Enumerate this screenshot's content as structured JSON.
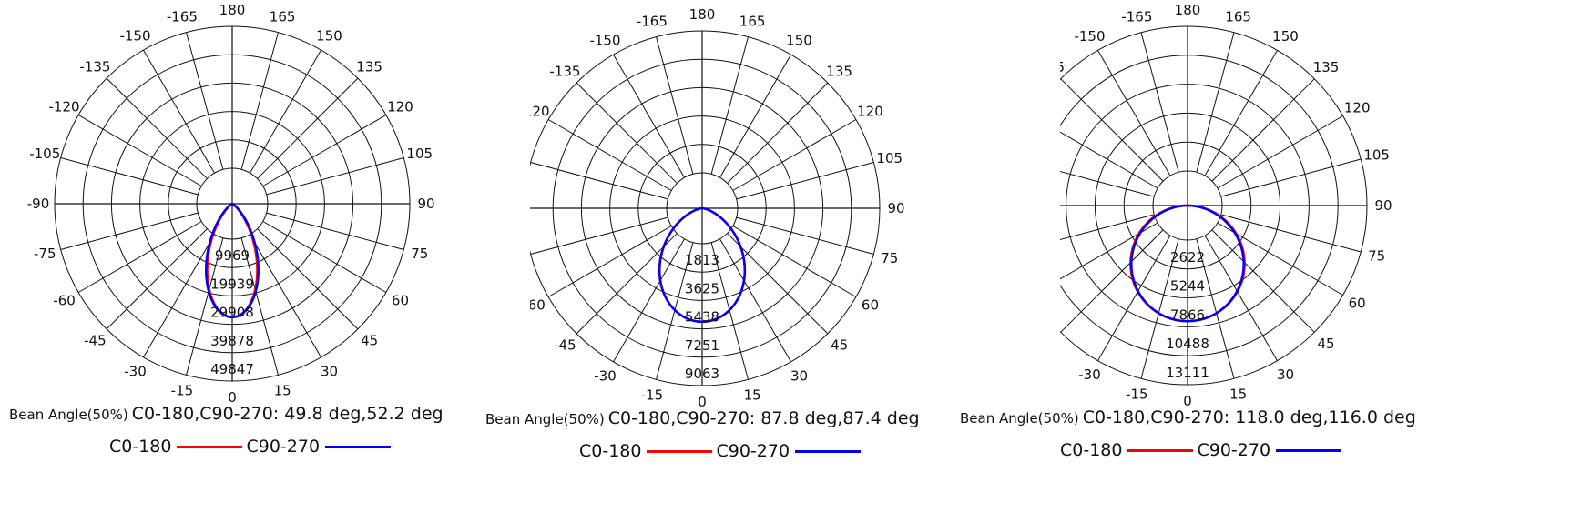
{
  "colors": {
    "C0-180": "#ff0000",
    "C90-270": "#0000ff",
    "grid": "#111111"
  },
  "chart_data": [
    {
      "type": "polar",
      "angle_ticks": [
        "180",
        "165",
        "150",
        "135",
        "120",
        "105",
        "90",
        "75",
        "60",
        "45",
        "30",
        "15",
        "0",
        "-15",
        "-30",
        "-45",
        "-60",
        "-75",
        "-90",
        "-105",
        "-120",
        "-135",
        "-150",
        "-165"
      ],
      "radial_ticks": [
        "9969",
        "19939",
        "29908",
        "39878",
        "49847"
      ],
      "radial_max": 49847,
      "beam_prefix": "Bean Angle(50%)",
      "beam_text": "C0-180,C90-270: 49.8 deg,52.2 deg",
      "series": [
        {
          "name": "C0-180",
          "beam_deg": 49.8,
          "peak": 39878
        },
        {
          "name": "C90-270",
          "beam_deg": 52.2,
          "peak": 39878
        }
      ]
    },
    {
      "type": "polar",
      "angle_ticks": [
        "180",
        "165",
        "150",
        "135",
        "120",
        "105",
        "90",
        "75",
        "60",
        "45",
        "30",
        "15",
        "0",
        "-15",
        "-30",
        "-45",
        "-60",
        "-75",
        "-90",
        "-105",
        "-120",
        "-135",
        "-150",
        "-165"
      ],
      "radial_ticks": [
        "1813",
        "3625",
        "5438",
        "7251",
        "9063"
      ],
      "radial_max": 9063,
      "beam_prefix": "Bean Angle(50%)",
      "beam_text": "C0-180,C90-270: 87.8 deg,87.4 deg",
      "series": [
        {
          "name": "C0-180",
          "beam_deg": 87.8,
          "peak": 7251
        },
        {
          "name": "C90-270",
          "beam_deg": 87.4,
          "peak": 7251
        }
      ]
    },
    {
      "type": "polar",
      "angle_ticks": [
        "180",
        "165",
        "150",
        "135",
        "120",
        "105",
        "90",
        "75",
        "60",
        "45",
        "30",
        "15",
        "0",
        "-15",
        "-30",
        "-45",
        "-60",
        "-75",
        "-90",
        "-105",
        "-120",
        "-135",
        "-150",
        "-165"
      ],
      "radial_ticks": [
        "2622",
        "5244",
        "7866",
        "10488",
        "13111"
      ],
      "radial_max": 13111,
      "beam_prefix": "Bean Angle(50%)",
      "beam_text": "C0-180,C90-270: 118.0 deg,116.0 deg",
      "series": [
        {
          "name": "C0-180",
          "beam_deg": 118.0,
          "peak": 10488
        },
        {
          "name": "C90-270",
          "beam_deg": 116.0,
          "peak": 10488
        }
      ]
    }
  ],
  "legend": {
    "c0_label": "C0-180",
    "c90_label": "C90-270"
  }
}
